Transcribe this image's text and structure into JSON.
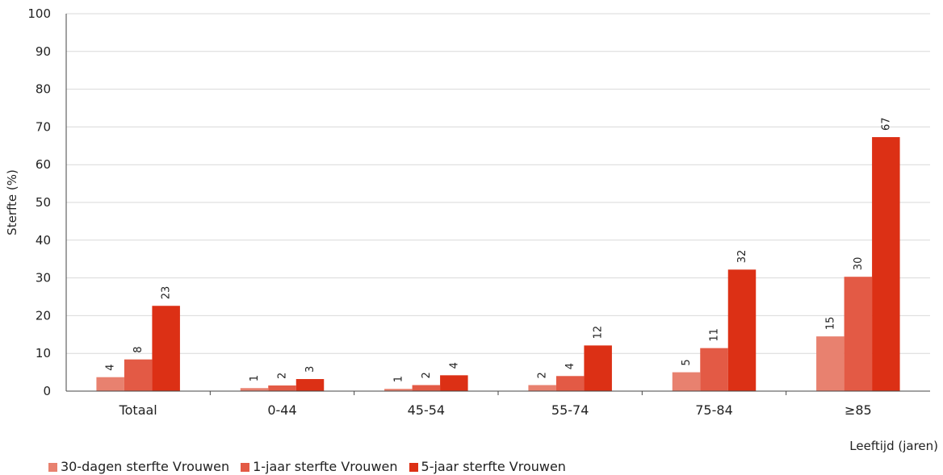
{
  "chart_data": {
    "type": "bar",
    "ylabel": "Sterfte (%)",
    "xlabel": "Leeftijd (jaren)",
    "ylim": [
      0,
      100
    ],
    "yticks": [
      0,
      10,
      20,
      30,
      40,
      50,
      60,
      70,
      80,
      90,
      100
    ],
    "grid": true,
    "legend_position": "bottom-left",
    "categories": [
      "Totaal",
      "0-44",
      "45-54",
      "55-74",
      "75-84",
      "≥85"
    ],
    "series": [
      {
        "name": "30-dagen sterfte Vrouwen",
        "color": "#e8816f",
        "values": [
          3.7,
          0.8,
          0.6,
          1.6,
          5.0,
          14.5
        ],
        "labels": [
          "4",
          "1",
          "1",
          "2",
          "5",
          "15"
        ]
      },
      {
        "name": "1-jaar sterfte Vrouwen",
        "color": "#e35a45",
        "values": [
          8.4,
          1.5,
          1.6,
          4.0,
          11.4,
          30.3
        ],
        "labels": [
          "8",
          "2",
          "2",
          "4",
          "11",
          "30"
        ]
      },
      {
        "name": "5-jaar sterfte Vrouwen",
        "color": "#dc3015",
        "values": [
          22.6,
          3.2,
          4.2,
          12.1,
          32.2,
          67.3
        ],
        "labels": [
          "23",
          "3",
          "4",
          "12",
          "32",
          "67"
        ]
      }
    ]
  }
}
